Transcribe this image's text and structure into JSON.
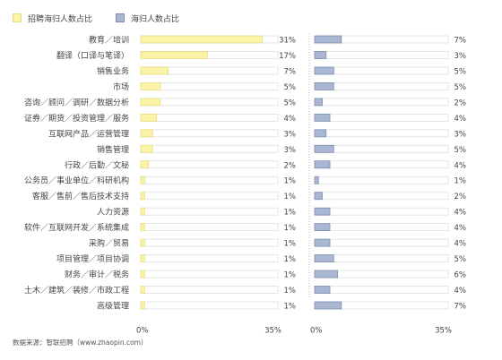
{
  "legend": [
    {
      "label": "招聘海归人数占比",
      "color": "#fbf3a8"
    },
    {
      "label": "海归人数占比",
      "color": "#a9b7d3"
    }
  ],
  "source_note": "数据来源：智联招聘（www.zhaopin.com）",
  "chart_data": {
    "type": "bar",
    "orientation": "horizontal",
    "categories": [
      "教育／培训",
      "翻译（口译与笔译）",
      "销售业务",
      "市场",
      "咨询／顾问／调研／数据分析",
      "证券／期货／投资管理／服务",
      "互联网产品／运营管理",
      "销售管理",
      "行政／后勤／文秘",
      "公务员／事业单位／科研机构",
      "客服／售前／售后技术支持",
      "人力资源",
      "软件／互联网开发／系统集成",
      "采购／贸易",
      "项目管理／项目协调",
      "财务／审计／税务",
      "土木／建筑／装修／市政工程",
      "高级管理"
    ],
    "series": [
      {
        "name": "招聘海归人数占比",
        "color": "#fbf3a8",
        "stroke": "#e8dd7c",
        "values": [
          31,
          17,
          7,
          5,
          5,
          4,
          3,
          3,
          2,
          1,
          1,
          1,
          1,
          1,
          1,
          1,
          1,
          1
        ]
      },
      {
        "name": "海归人数占比",
        "color": "#a9b7d3",
        "stroke": "#7d8db0",
        "values": [
          7,
          3,
          5,
          5,
          2,
          4,
          3,
          5,
          4,
          1,
          2,
          4,
          4,
          4,
          5,
          6,
          4,
          7
        ]
      }
    ],
    "value_suffix": "%",
    "xlim": [
      0,
      35
    ],
    "x_tick_labels": [
      "0%",
      "35%"
    ],
    "grid": false
  }
}
